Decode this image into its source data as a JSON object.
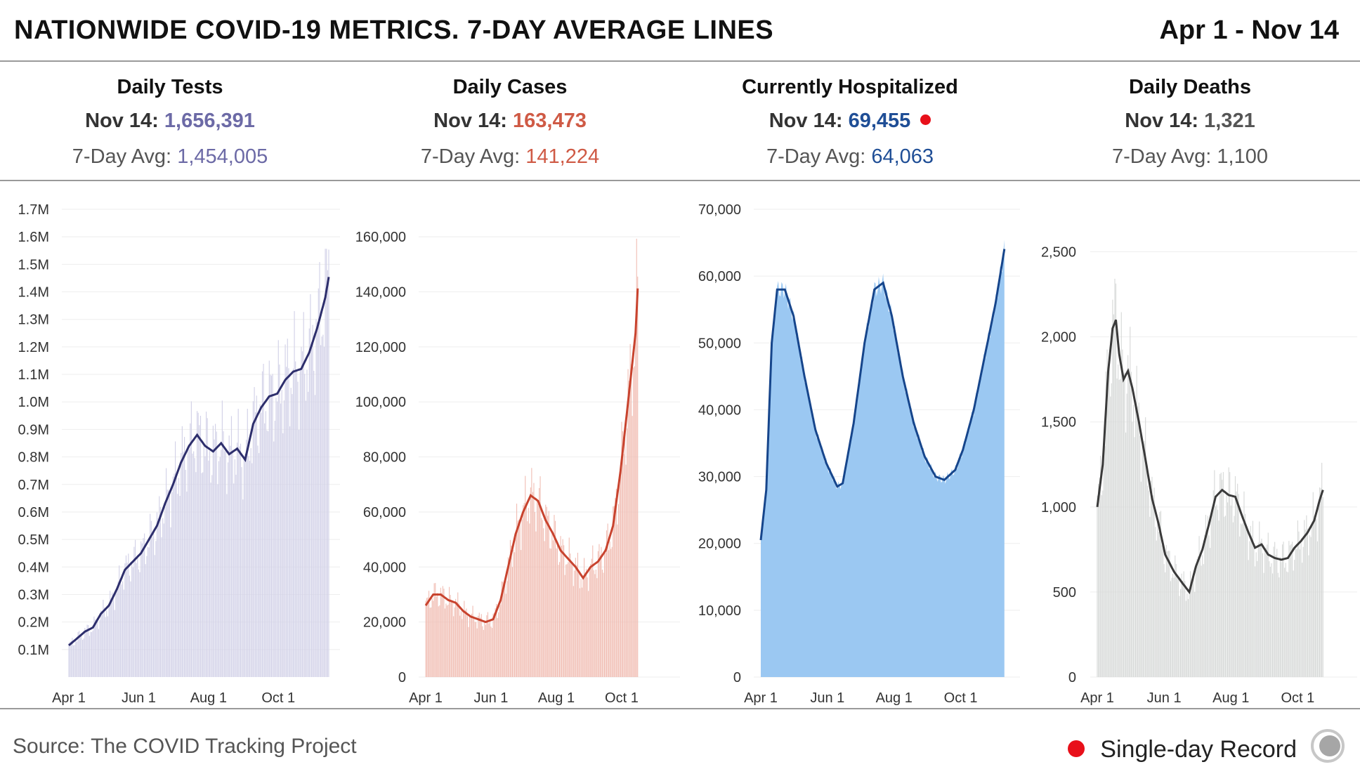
{
  "header": {
    "title": "NATIONWIDE COVID-19 METRICS. 7-DAY AVERAGE LINES",
    "date_range": "Apr 1 - Nov 14"
  },
  "metrics": [
    {
      "name": "Daily Tests",
      "date_label": "Nov 14:",
      "latest": "1,656,391",
      "avg_label": "7-Day Avg:",
      "avg": "1,454,005",
      "color": "#6c6aa6",
      "record": false
    },
    {
      "name": "Daily Cases",
      "date_label": "Nov 14:",
      "latest": "163,473",
      "avg_label": "7-Day Avg:",
      "avg": "141,224",
      "color": "#cf5a45",
      "record": false
    },
    {
      "name": "Currently Hospitalized",
      "date_label": "Nov 14:",
      "latest": "69,455",
      "avg_label": "7-Day Avg:",
      "avg": "64,063",
      "color": "#1f4e96",
      "record": true
    },
    {
      "name": "Daily Deaths",
      "date_label": "Nov 14:",
      "latest": "1,321",
      "avg_label": "7-Day Avg:",
      "avg": "1,100",
      "color": "#555555",
      "record": false
    }
  ],
  "chart_data": [
    {
      "type": "bar",
      "title": "Daily Tests",
      "xlabel": "",
      "ylabel": "",
      "x_ticks": [
        "Apr 1",
        "Jun 1",
        "Aug 1",
        "Oct 1"
      ],
      "x_tick_days": [
        0,
        61,
        122,
        183
      ],
      "y_ticks": [
        "0.1M",
        "0.2M",
        "0.3M",
        "0.4M",
        "0.5M",
        "0.6M",
        "0.7M",
        "0.8M",
        "0.9M",
        "1.0M",
        "1.1M",
        "1.2M",
        "1.3M",
        "1.4M",
        "1.5M",
        "1.6M",
        "1.7M"
      ],
      "ylim": [
        0,
        1700000
      ],
      "avg_anchors": [
        [
          0,
          115000
        ],
        [
          7,
          140000
        ],
        [
          14,
          165000
        ],
        [
          21,
          180000
        ],
        [
          28,
          230000
        ],
        [
          35,
          260000
        ],
        [
          42,
          320000
        ],
        [
          49,
          390000
        ],
        [
          56,
          420000
        ],
        [
          63,
          450000
        ],
        [
          70,
          500000
        ],
        [
          77,
          550000
        ],
        [
          84,
          630000
        ],
        [
          91,
          700000
        ],
        [
          98,
          780000
        ],
        [
          105,
          840000
        ],
        [
          112,
          880000
        ],
        [
          119,
          840000
        ],
        [
          126,
          820000
        ],
        [
          133,
          850000
        ],
        [
          140,
          810000
        ],
        [
          147,
          830000
        ],
        [
          154,
          790000
        ],
        [
          161,
          920000
        ],
        [
          168,
          980000
        ],
        [
          175,
          1020000
        ],
        [
          182,
          1030000
        ],
        [
          189,
          1080000
        ],
        [
          196,
          1110000
        ],
        [
          203,
          1120000
        ],
        [
          210,
          1180000
        ],
        [
          217,
          1270000
        ],
        [
          224,
          1380000
        ],
        [
          227,
          1454005
        ]
      ],
      "bar_color": "#d3d2e8",
      "line_color": "#2d2e6c"
    },
    {
      "type": "bar",
      "title": "Daily Cases",
      "xlabel": "",
      "ylabel": "",
      "x_ticks": [
        "Apr 1",
        "Jun 1",
        "Aug 1",
        "Oct 1"
      ],
      "x_tick_days": [
        0,
        61,
        122,
        183
      ],
      "y_ticks": [
        "0",
        "20,000",
        "40,000",
        "60,000",
        "80,000",
        "100,000",
        "120,000",
        "140,000",
        "160,000"
      ],
      "ylim": [
        0,
        170000
      ],
      "avg_anchors": [
        [
          0,
          26000
        ],
        [
          7,
          30000
        ],
        [
          14,
          30000
        ],
        [
          21,
          28000
        ],
        [
          28,
          27000
        ],
        [
          35,
          24000
        ],
        [
          42,
          22000
        ],
        [
          49,
          21000
        ],
        [
          56,
          20000
        ],
        [
          63,
          21000
        ],
        [
          70,
          28000
        ],
        [
          77,
          40000
        ],
        [
          84,
          52000
        ],
        [
          91,
          60000
        ],
        [
          98,
          66000
        ],
        [
          105,
          64000
        ],
        [
          112,
          57000
        ],
        [
          119,
          52000
        ],
        [
          126,
          46000
        ],
        [
          133,
          43000
        ],
        [
          140,
          40000
        ],
        [
          147,
          36000
        ],
        [
          154,
          40000
        ],
        [
          161,
          42000
        ],
        [
          168,
          46000
        ],
        [
          175,
          55000
        ],
        [
          182,
          75000
        ],
        [
          189,
          100000
        ],
        [
          196,
          125000
        ],
        [
          198,
          141224
        ]
      ],
      "bar_color": "#f1bdb3",
      "line_color": "#c8432e"
    },
    {
      "type": "area",
      "title": "Currently Hospitalized",
      "xlabel": "",
      "ylabel": "",
      "x_ticks": [
        "Apr 1",
        "Jun 1",
        "Aug 1",
        "Oct 1"
      ],
      "x_tick_days": [
        0,
        61,
        122,
        183
      ],
      "y_ticks": [
        "0",
        "10,000",
        "20,000",
        "30,000",
        "40,000",
        "50,000",
        "60,000",
        "70,000"
      ],
      "ylim": [
        0,
        70000
      ],
      "avg_anchors": [
        [
          0,
          20500
        ],
        [
          5,
          28000
        ],
        [
          10,
          50000
        ],
        [
          15,
          58000
        ],
        [
          22,
          58000
        ],
        [
          30,
          54000
        ],
        [
          40,
          45000
        ],
        [
          50,
          37000
        ],
        [
          60,
          32000
        ],
        [
          70,
          28500
        ],
        [
          75,
          29000
        ],
        [
          85,
          38000
        ],
        [
          95,
          50000
        ],
        [
          104,
          58000
        ],
        [
          112,
          59000
        ],
        [
          120,
          54000
        ],
        [
          130,
          45000
        ],
        [
          140,
          38000
        ],
        [
          150,
          33000
        ],
        [
          160,
          30000
        ],
        [
          168,
          29500
        ],
        [
          178,
          31000
        ],
        [
          185,
          34000
        ],
        [
          195,
          40000
        ],
        [
          205,
          48000
        ],
        [
          215,
          56000
        ],
        [
          223,
          64063
        ]
      ],
      "bar_color": "#9bc8f2",
      "line_color": "#16458b"
    },
    {
      "type": "bar",
      "title": "Daily Deaths",
      "xlabel": "",
      "ylabel": "",
      "x_ticks": [
        "Apr 1",
        "Jun 1",
        "Aug 1",
        "Oct 1"
      ],
      "x_tick_days": [
        0,
        61,
        122,
        183
      ],
      "y_ticks": [
        "0",
        "500",
        "1,000",
        "1,500",
        "2,000",
        "2,500"
      ],
      "ylim": [
        0,
        2750
      ],
      "avg_anchors": [
        [
          0,
          1000
        ],
        [
          5,
          1250
        ],
        [
          10,
          1800
        ],
        [
          14,
          2050
        ],
        [
          17,
          2100
        ],
        [
          20,
          1900
        ],
        [
          24,
          1750
        ],
        [
          28,
          1800
        ],
        [
          32,
          1700
        ],
        [
          38,
          1500
        ],
        [
          44,
          1280
        ],
        [
          50,
          1050
        ],
        [
          56,
          900
        ],
        [
          62,
          720
        ],
        [
          70,
          620
        ],
        [
          78,
          550
        ],
        [
          84,
          500
        ],
        [
          90,
          650
        ],
        [
          96,
          750
        ],
        [
          102,
          900
        ],
        [
          108,
          1060
        ],
        [
          114,
          1100
        ],
        [
          120,
          1070
        ],
        [
          126,
          1060
        ],
        [
          132,
          950
        ],
        [
          138,
          850
        ],
        [
          144,
          760
        ],
        [
          150,
          780
        ],
        [
          156,
          720
        ],
        [
          162,
          700
        ],
        [
          168,
          690
        ],
        [
          174,
          700
        ],
        [
          180,
          760
        ],
        [
          186,
          800
        ],
        [
          192,
          850
        ],
        [
          198,
          920
        ],
        [
          203,
          1040
        ],
        [
          206,
          1100
        ]
      ],
      "bar_color": "#d7d9d8",
      "line_color": "#3a3a3a"
    }
  ],
  "footer": {
    "source": "Source: The COVID Tracking Project",
    "legend_label": "Single-day Record",
    "record_color": "#e8101a"
  }
}
